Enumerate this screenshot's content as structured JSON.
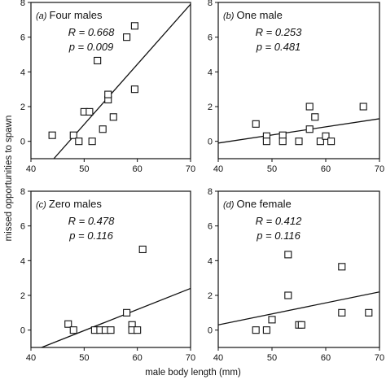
{
  "figure": {
    "xlabel": "male body length (mm)",
    "ylabel": "missed opportunities to spawn"
  },
  "chart_data": [
    {
      "type": "scatter",
      "panel": "(a)",
      "title": "Four males",
      "r_label": "R = 0.668",
      "p_label": "p = 0.009",
      "xlim": [
        40,
        70
      ],
      "ylim": [
        -1,
        8
      ],
      "xticks": [
        "40",
        "50",
        "60",
        "70"
      ],
      "yticks": [
        "0",
        "2",
        "4",
        "6",
        "8"
      ],
      "points": [
        [
          44,
          0.35
        ],
        [
          48,
          0.35
        ],
        [
          49,
          0
        ],
        [
          50,
          1.7
        ],
        [
          51,
          1.7
        ],
        [
          51.5,
          0
        ],
        [
          52.5,
          4.65
        ],
        [
          53.5,
          0.7
        ],
        [
          54.5,
          2.4
        ],
        [
          54.5,
          2.7
        ],
        [
          55.5,
          1.4
        ],
        [
          58,
          6
        ],
        [
          59.5,
          3
        ],
        [
          59.5,
          6.65
        ]
      ],
      "fit": [
        [
          44.3,
          -1
        ],
        [
          70,
          7.9
        ]
      ]
    },
    {
      "type": "scatter",
      "panel": "(b)",
      "title": "One male",
      "r_label": "R = 0.253",
      "p_label": "p = 0.481",
      "xlim": [
        40,
        70
      ],
      "ylim": [
        -1,
        8
      ],
      "xticks": [
        "40",
        "50",
        "60",
        "70"
      ],
      "yticks": [
        "0",
        "2",
        "4",
        "6",
        "8"
      ],
      "points": [
        [
          47,
          1
        ],
        [
          49,
          0.3
        ],
        [
          49,
          0
        ],
        [
          52,
          0.35
        ],
        [
          52,
          0
        ],
        [
          55,
          0
        ],
        [
          57,
          2
        ],
        [
          57,
          0.7
        ],
        [
          58,
          1.4
        ],
        [
          59,
          0
        ],
        [
          60,
          0.3
        ],
        [
          61,
          0
        ],
        [
          67,
          2
        ]
      ],
      "fit": [
        [
          40,
          -0.1
        ],
        [
          70,
          1.3
        ]
      ]
    },
    {
      "type": "scatter",
      "panel": "(c)",
      "title": "Zero males",
      "r_label": "R = 0.478",
      "p_label": "p = 0.116",
      "xlim": [
        40,
        70
      ],
      "ylim": [
        -1,
        8
      ],
      "xticks": [
        "40",
        "50",
        "60",
        "70"
      ],
      "yticks": [
        "0",
        "2",
        "4",
        "6",
        "8"
      ],
      "points": [
        [
          47,
          0.35
        ],
        [
          48,
          0
        ],
        [
          52,
          0
        ],
        [
          53,
          0
        ],
        [
          54,
          0
        ],
        [
          55,
          0
        ],
        [
          58,
          1
        ],
        [
          59,
          0.3
        ],
        [
          59,
          0
        ],
        [
          60,
          0
        ],
        [
          61,
          4.65
        ]
      ],
      "fit": [
        [
          42,
          -1
        ],
        [
          70,
          2.4
        ]
      ]
    },
    {
      "type": "scatter",
      "panel": "(d)",
      "title": "One female",
      "r_label": "R = 0.412",
      "p_label": "p = 0.116",
      "xlim": [
        40,
        70
      ],
      "ylim": [
        -1,
        8
      ],
      "xticks": [
        "40",
        "50",
        "60",
        "70"
      ],
      "yticks": [
        "0",
        "2",
        "4",
        "6",
        "8"
      ],
      "points": [
        [
          47,
          0
        ],
        [
          49,
          0
        ],
        [
          50,
          0.6
        ],
        [
          53,
          4.35
        ],
        [
          53,
          2
        ],
        [
          55,
          0.3
        ],
        [
          55.5,
          0.3
        ],
        [
          63,
          3.65
        ],
        [
          63,
          1
        ],
        [
          68,
          1
        ]
      ],
      "fit": [
        [
          40,
          0.3
        ],
        [
          70,
          2.2
        ]
      ]
    }
  ]
}
